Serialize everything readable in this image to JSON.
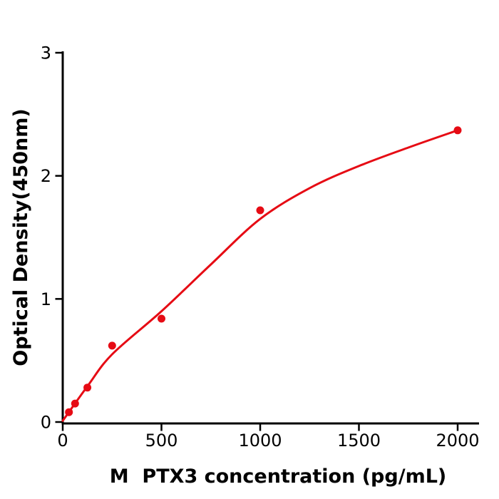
{
  "chart_data": {
    "type": "scatter",
    "title": "",
    "xlabel": "M  PTX3 concentration (pg/mL)",
    "ylabel": "Optical Density(450nm)",
    "xlim": [
      0,
      2110
    ],
    "ylim": [
      0,
      3
    ],
    "x_ticks": [
      0,
      500,
      1000,
      1500,
      2000
    ],
    "y_ticks": [
      0,
      1,
      2,
      3
    ],
    "grid": false,
    "legend": false,
    "axis_color": "#000000",
    "point_color": "#e60b14",
    "line_color": "#e60b14",
    "series": [
      {
        "name": "standard-points",
        "type": "scatter",
        "points": [
          [
            31.25,
            0.08
          ],
          [
            62.5,
            0.15
          ],
          [
            125,
            0.28
          ],
          [
            250,
            0.62
          ],
          [
            500,
            0.84
          ],
          [
            1000,
            1.72
          ],
          [
            2000,
            2.37
          ]
        ]
      },
      {
        "name": "fit-curve",
        "type": "line",
        "points": [
          [
            0,
            0.01
          ],
          [
            125,
            0.29
          ],
          [
            250,
            0.55
          ],
          [
            500,
            0.9
          ],
          [
            750,
            1.28
          ],
          [
            1000,
            1.65
          ],
          [
            1250,
            1.9
          ],
          [
            1500,
            2.08
          ],
          [
            1750,
            2.23
          ],
          [
            2000,
            2.37
          ]
        ]
      }
    ]
  }
}
